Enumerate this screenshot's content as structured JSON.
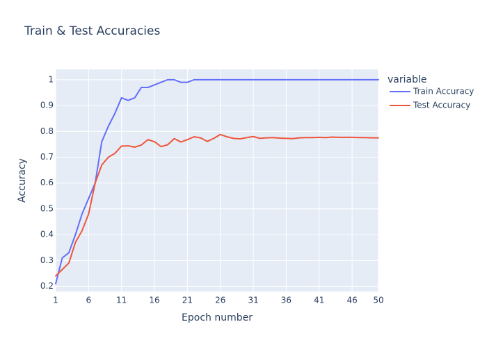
{
  "chart_data": {
    "type": "line",
    "title": "Train & Test Accuracies",
    "xlabel": "Epoch number",
    "ylabel": "Accuracy",
    "xlim": [
      1,
      50
    ],
    "ylim": [
      0.18,
      1.04
    ],
    "xticks": [
      1,
      6,
      11,
      16,
      21,
      26,
      31,
      36,
      41,
      46,
      50
    ],
    "yticks": [
      0.2,
      0.3,
      0.4,
      0.5,
      0.6,
      0.7,
      0.8,
      0.9,
      1
    ],
    "ytick_labels": [
      "0.2",
      "0.3",
      "0.4",
      "0.5",
      "0.6",
      "0.7",
      "0.8",
      "0.9",
      "1"
    ],
    "grid": true,
    "plot_bgcolor": "#E5ECF6",
    "legend": {
      "title": "variable",
      "position": "right"
    },
    "x": [
      1,
      2,
      3,
      4,
      5,
      6,
      7,
      8,
      9,
      10,
      11,
      12,
      13,
      14,
      15,
      16,
      17,
      18,
      19,
      20,
      21,
      22,
      23,
      24,
      25,
      26,
      27,
      28,
      29,
      30,
      31,
      32,
      33,
      34,
      35,
      36,
      37,
      38,
      39,
      40,
      41,
      42,
      43,
      44,
      45,
      46,
      47,
      48,
      49,
      50
    ],
    "series": [
      {
        "name": "Train Accuracy",
        "color": "#636EFA",
        "values": [
          0.21,
          0.31,
          0.33,
          0.4,
          0.48,
          0.54,
          0.6,
          0.76,
          0.82,
          0.87,
          0.93,
          0.92,
          0.93,
          0.97,
          0.97,
          0.98,
          0.99,
          1.0,
          1.0,
          0.99,
          0.99,
          1.0,
          1.0,
          1.0,
          1.0,
          1.0,
          1.0,
          1.0,
          1.0,
          1.0,
          1.0,
          1.0,
          1.0,
          1.0,
          1.0,
          1.0,
          1.0,
          1.0,
          1.0,
          1.0,
          1.0,
          1.0,
          1.0,
          1.0,
          1.0,
          1.0,
          1.0,
          1.0,
          1.0,
          1.0
        ]
      },
      {
        "name": "Test Accuracy",
        "color": "#EF553B",
        "values": [
          0.24,
          0.265,
          0.29,
          0.37,
          0.415,
          0.48,
          0.6,
          0.67,
          0.7,
          0.715,
          0.743,
          0.744,
          0.739,
          0.747,
          0.768,
          0.76,
          0.741,
          0.748,
          0.772,
          0.759,
          0.768,
          0.779,
          0.775,
          0.761,
          0.773,
          0.788,
          0.779,
          0.773,
          0.771,
          0.776,
          0.78,
          0.773,
          0.775,
          0.776,
          0.774,
          0.773,
          0.772,
          0.775,
          0.776,
          0.776,
          0.777,
          0.776,
          0.778,
          0.777,
          0.777,
          0.777,
          0.776,
          0.776,
          0.775,
          0.775
        ]
      }
    ]
  }
}
